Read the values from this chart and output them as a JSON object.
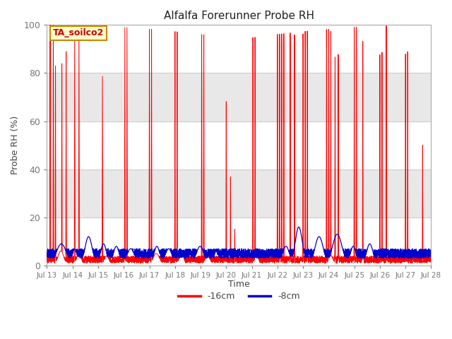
{
  "title": "Alfalfa Forerunner Probe RH",
  "ylabel": "Probe RH (%)",
  "xlabel": "Time",
  "ylim": [
    0,
    100
  ],
  "xlim": [
    0,
    360
  ],
  "background_color": "#ffffff",
  "plot_bg_color": "#ffffff",
  "band_color_dark": "#e0e0e0",
  "band_color_light": "#f0f0f0",
  "annotation_text": "TA_soilco2",
  "annotation_bg": "#ffffcc",
  "annotation_border": "#cc8800",
  "line1_color": "#ff0000",
  "line2_color": "#0000cc",
  "legend_labels": [
    "-16cm",
    "-8cm"
  ],
  "xtick_labels": [
    "Jul 13",
    "Jul 14",
    "Jul 15",
    "Jul 16",
    "Jul 17",
    "Jul 18",
    "Jul 19",
    "Jul 20",
    "Jul 21",
    "Jul 22",
    "Jul 23",
    "Jul 24",
    "Jul 25",
    "Jul 26",
    "Jul 27",
    "Jul 28"
  ],
  "xtick_positions": [
    0,
    24,
    48,
    72,
    96,
    120,
    144,
    168,
    192,
    216,
    240,
    264,
    288,
    312,
    336,
    360
  ],
  "ytick_labels": [
    "0",
    "20",
    "40",
    "60",
    "80",
    "100"
  ],
  "ytick_positions": [
    0,
    20,
    40,
    60,
    80,
    100
  ],
  "grid_lines": [
    20,
    40,
    60,
    80,
    100
  ],
  "band_ranges": [
    [
      0,
      20
    ],
    [
      20,
      40
    ],
    [
      40,
      60
    ],
    [
      60,
      80
    ],
    [
      80,
      100
    ]
  ],
  "band_colors": [
    "#ffffff",
    "#e8e8e8",
    "#ffffff",
    "#e8e8e8",
    "#ffffff"
  ]
}
